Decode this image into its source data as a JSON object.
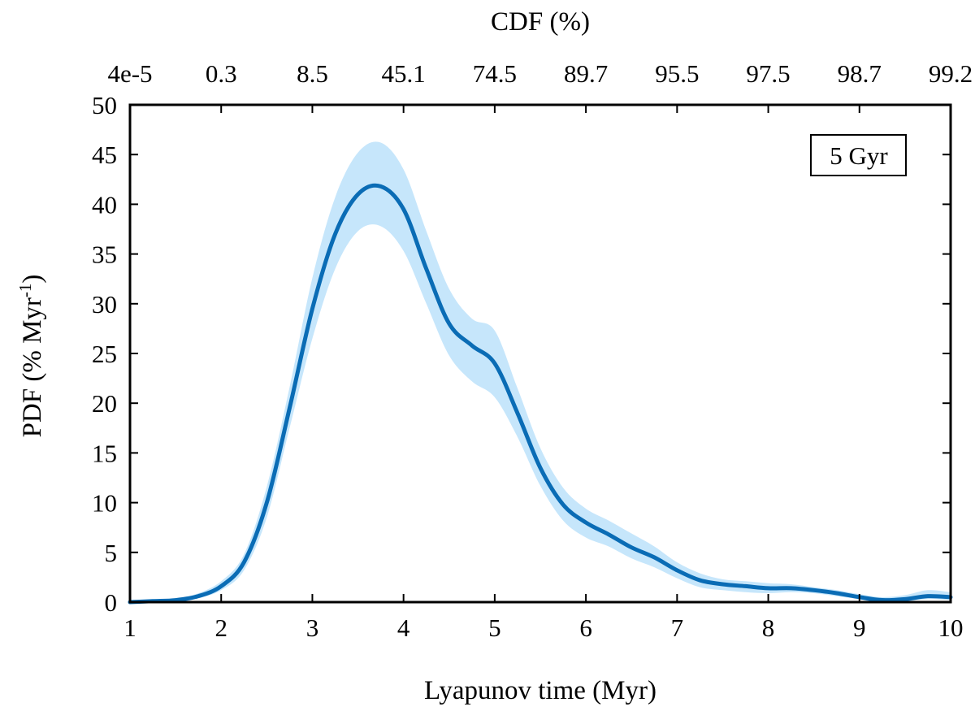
{
  "chart_data": {
    "type": "line",
    "top_title": "CDF (%)",
    "xlabel": "Lyapunov time (Myr)",
    "ylabel": "PDF (% Myr",
    "ylabel_superscript": "-1",
    "ylabel_close": ")",
    "legend_label": "5 Gyr",
    "xlim": [
      1,
      10
    ],
    "ylim": [
      0,
      50
    ],
    "x_ticks": [
      1,
      2,
      3,
      4,
      5,
      6,
      7,
      8,
      9,
      10
    ],
    "x_tick_labels": [
      "1",
      "2",
      "3",
      "4",
      "5",
      "6",
      "7",
      "8",
      "9",
      "10"
    ],
    "y_ticks": [
      0,
      5,
      10,
      15,
      20,
      25,
      30,
      35,
      40,
      45,
      50
    ],
    "y_tick_labels": [
      "0",
      "5",
      "10",
      "15",
      "20",
      "25",
      "30",
      "35",
      "40",
      "45",
      "50"
    ],
    "top_ticks": [
      1,
      2,
      3,
      4,
      5,
      6,
      7,
      8,
      9,
      10
    ],
    "top_tick_labels": [
      "4e-5",
      "0.3",
      "8.5",
      "45.1",
      "74.5",
      "89.7",
      "95.5",
      "97.5",
      "98.7",
      "99.2"
    ],
    "line_color": "#0a6cb5",
    "band_color": "#c6e6fb",
    "series": [
      {
        "name": "PDF",
        "x": [
          1.0,
          1.25,
          1.5,
          1.75,
          2.0,
          2.25,
          2.5,
          2.75,
          3.0,
          3.25,
          3.5,
          3.75,
          4.0,
          4.25,
          4.5,
          4.75,
          5.0,
          5.25,
          5.5,
          5.75,
          6.0,
          6.25,
          6.5,
          6.75,
          7.0,
          7.25,
          7.5,
          7.75,
          8.0,
          8.25,
          8.5,
          8.75,
          9.0,
          9.25,
          9.5,
          9.75,
          10.0
        ],
        "y": [
          0.0,
          0.1,
          0.2,
          0.6,
          1.6,
          4.0,
          10.0,
          19.5,
          29.5,
          37.0,
          41.0,
          41.8,
          39.5,
          33.5,
          28.0,
          25.8,
          24.0,
          19.0,
          13.5,
          9.8,
          8.0,
          6.8,
          5.5,
          4.5,
          3.2,
          2.2,
          1.8,
          1.6,
          1.4,
          1.4,
          1.2,
          0.9,
          0.5,
          0.2,
          0.3,
          0.6,
          0.5
        ],
        "lower": [
          0.0,
          0.05,
          0.15,
          0.4,
          1.2,
          3.2,
          8.5,
          17.5,
          26.5,
          33.5,
          37.3,
          37.8,
          35.3,
          30.0,
          24.8,
          22.2,
          20.6,
          16.6,
          11.7,
          8.2,
          6.5,
          5.6,
          4.4,
          3.5,
          2.4,
          1.5,
          1.2,
          1.0,
          0.9,
          1.0,
          0.9,
          0.6,
          0.3,
          0.0,
          0.1,
          0.3,
          0.2
        ],
        "upper": [
          0.05,
          0.2,
          0.35,
          0.9,
          2.1,
          4.8,
          11.6,
          21.6,
          32.6,
          40.7,
          45.2,
          46.2,
          43.5,
          37.3,
          31.5,
          28.5,
          27.3,
          21.5,
          15.5,
          11.5,
          9.4,
          8.2,
          6.9,
          5.6,
          4.0,
          2.9,
          2.3,
          2.1,
          1.9,
          1.8,
          1.5,
          1.2,
          0.8,
          0.5,
          0.7,
          1.2,
          1.0
        ]
      }
    ]
  }
}
